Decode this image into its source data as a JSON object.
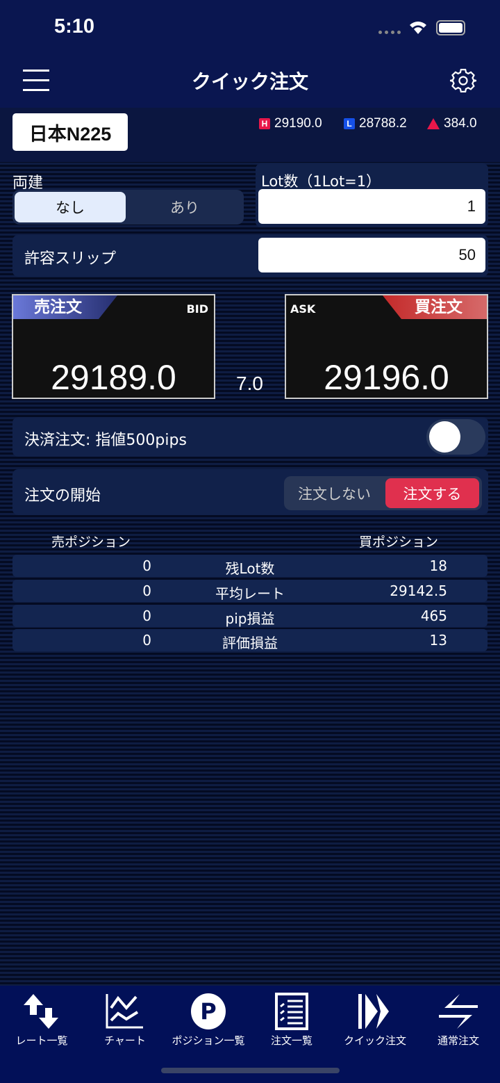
{
  "status": {
    "time": "5:10"
  },
  "header": {
    "title": "クイック注文",
    "menu_icon": "hamburger-icon",
    "settings_icon": "gear-icon"
  },
  "symbol": {
    "name": "日本N225",
    "high_label": "H",
    "high": "29190.0",
    "low_label": "L",
    "low": "28788.2",
    "change": "384.0",
    "colors": {
      "high": "#e8174a",
      "low": "#1550e8",
      "up": "#e8174a"
    }
  },
  "hedge": {
    "label": "両建",
    "options": [
      "なし",
      "あり"
    ],
    "selected": "なし"
  },
  "lot": {
    "label": "Lot数（1Lot=1）",
    "value": "1"
  },
  "slip": {
    "label": "許容スリップ",
    "value": "50"
  },
  "bid": {
    "tag": "売注文",
    "label": "BID",
    "price": "29189.0"
  },
  "ask": {
    "tag": "買注文",
    "label": "ASK",
    "price": "29196.0"
  },
  "spread": "7.0",
  "settle": {
    "label": "決済注文: 指値500pips",
    "enabled": false
  },
  "start": {
    "label": "注文の開始",
    "options": [
      "注文しない",
      "注文する"
    ],
    "selected": "注文する",
    "accent": "#e0304e"
  },
  "positions": {
    "sell_header": "売ポジション",
    "buy_header": "買ポジション",
    "rows": [
      {
        "sell": "0",
        "label": "残Lot数",
        "buy": "18"
      },
      {
        "sell": "0",
        "label": "平均レート",
        "buy": "29142.5"
      },
      {
        "sell": "0",
        "label": "pip損益",
        "buy": "465"
      },
      {
        "sell": "0",
        "label": "評価損益",
        "buy": "13"
      }
    ]
  },
  "nav": [
    {
      "label": "レート一覧",
      "icon": "arrows-updown-icon"
    },
    {
      "label": "チャート",
      "icon": "chart-icon"
    },
    {
      "label": "ポジション一覧",
      "icon": "p-circle-icon"
    },
    {
      "label": "注文一覧",
      "icon": "list-icon"
    },
    {
      "label": "クイック注文",
      "icon": "fast-forward-icon"
    },
    {
      "label": "通常注文",
      "icon": "exchange-icon"
    }
  ]
}
